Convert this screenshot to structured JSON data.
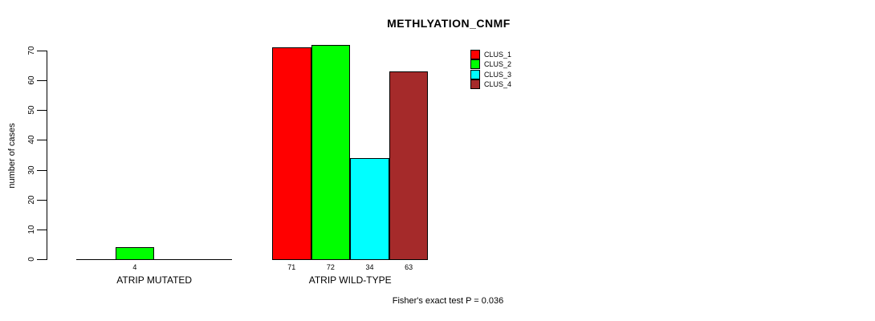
{
  "chart_data": {
    "type": "bar",
    "title": "METHLYATION_CNMF",
    "ylabel": "number of cases",
    "ylim": [
      0,
      70
    ],
    "yticks": [
      0,
      10,
      20,
      30,
      40,
      50,
      60,
      70
    ],
    "grid": false,
    "legend_position": "top-right",
    "series": [
      {
        "name": "CLUS_1",
        "color": "#FF0000"
      },
      {
        "name": "CLUS_2",
        "color": "#00FF00"
      },
      {
        "name": "CLUS_3",
        "color": "#00FFFF"
      },
      {
        "name": "CLUS_4",
        "color": "#A52A2A"
      }
    ],
    "categories": [
      "ATRIP MUTATED",
      "ATRIP WILD-TYPE"
    ],
    "groups": [
      {
        "label": "ATRIP MUTATED",
        "values": [
          0,
          4,
          0,
          0
        ]
      },
      {
        "label": "ATRIP WILD-TYPE",
        "values": [
          71,
          72,
          34,
          63
        ]
      }
    ],
    "bar_value_labels_shown": [
      [
        4
      ],
      [
        71,
        72,
        34,
        63
      ]
    ],
    "annotation": "Fisher's exact test P = 0.036"
  }
}
